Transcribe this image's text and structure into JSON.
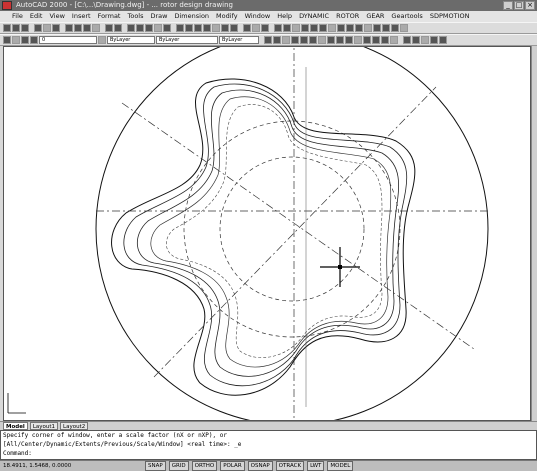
{
  "window": {
    "title": "AutoCAD 2000 - [C:\\...\\Drawing.dwg] - ... rotor design drawing",
    "controls": [
      "_",
      "□",
      "×"
    ]
  },
  "menu": [
    "File",
    "Edit",
    "View",
    "Insert",
    "Format",
    "Tools",
    "Draw",
    "Dimension",
    "Modify",
    "Window",
    "Help",
    "DYNAMIC",
    "ROTOR",
    "GEAR",
    "Geartools",
    "SDPMOTION"
  ],
  "toolbar2": {
    "layer": "0",
    "linetype1": "ByLayer",
    "linetype2": "ByLayer",
    "lineweight": "ByLayer"
  },
  "layout_tabs": [
    "Model",
    "Layout1",
    "Layout2"
  ],
  "command_lines": [
    "Specify corner of window, enter a scale factor (nX or nXP), or",
    "[All/Center/Dynamic/Extents/Previous/Scale/Window] <real time>: _e",
    "Command:"
  ],
  "status": {
    "coords": "18.4911, 1.5468, 0.0000",
    "modes": [
      "SNAP",
      "GRID",
      "ORTHO",
      "POLAR",
      "OSNAP",
      "OTRACK",
      "LWT",
      "MODEL"
    ]
  }
}
